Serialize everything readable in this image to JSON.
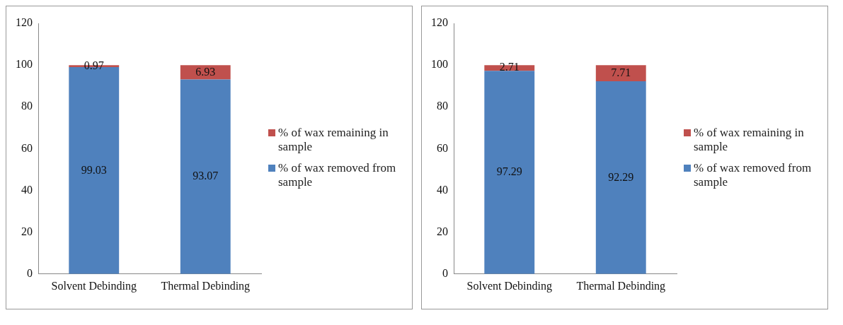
{
  "chart_data": [
    {
      "type": "bar",
      "stacked": true,
      "categories": [
        "Solvent Debinding",
        "Thermal Debinding"
      ],
      "series": [
        {
          "name": "% of wax removed from sample",
          "color": "#4f81bd",
          "values": [
            99.03,
            93.07
          ]
        },
        {
          "name": "% of wax remaining in sample",
          "color": "#c0504d",
          "values": [
            0.97,
            6.93
          ]
        }
      ],
      "ylim": [
        0,
        120
      ],
      "yticks": [
        0,
        20,
        40,
        60,
        80,
        100,
        120
      ],
      "grid": false,
      "legend": "right",
      "data_labels": true
    },
    {
      "type": "bar",
      "stacked": true,
      "categories": [
        "Solvent Debinding",
        "Thermal Debinding"
      ],
      "series": [
        {
          "name": "% of wax removed from sample",
          "color": "#4f81bd",
          "values": [
            97.29,
            92.29
          ]
        },
        {
          "name": "% of wax remaining in sample",
          "color": "#c0504d",
          "values": [
            2.71,
            7.71
          ]
        }
      ],
      "ylim": [
        0,
        120
      ],
      "yticks": [
        0,
        20,
        40,
        60,
        80,
        100,
        120
      ],
      "grid": false,
      "legend": "right",
      "data_labels": true
    }
  ]
}
